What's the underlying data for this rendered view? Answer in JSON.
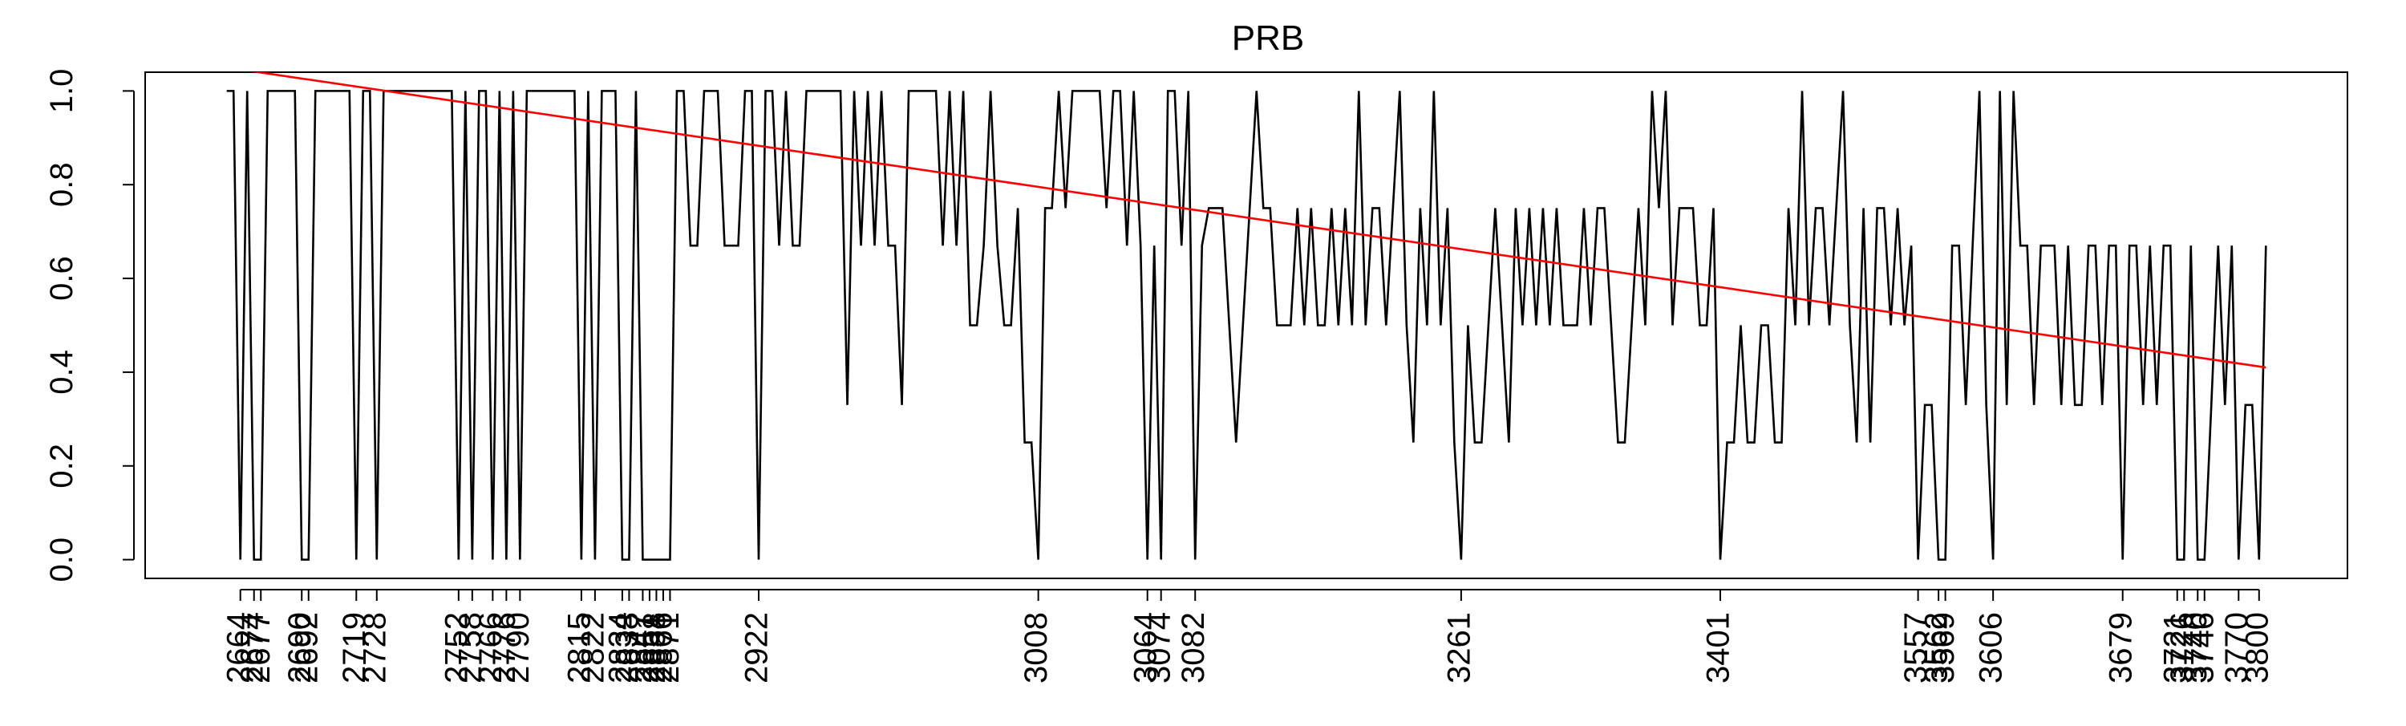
{
  "chart_data": {
    "type": "line",
    "title": "PRB",
    "xlim": [
      -10.96,
      311.96
    ],
    "ylim": [
      -0.04,
      1.04
    ],
    "yticks": [
      {
        "value": 0,
        "label": "0.0"
      },
      0.2,
      0.4,
      0.6,
      0.8,
      {
        "value": 1,
        "label": "1.0"
      }
    ],
    "xticks": [
      {
        "value": 3,
        "label": "2664"
      },
      {
        "value": 5,
        "label": "2674"
      },
      {
        "value": 6,
        "label": "2677"
      },
      {
        "value": 12,
        "label": "2690"
      },
      {
        "value": 13,
        "label": "2692"
      },
      {
        "value": 20,
        "label": "2719"
      },
      {
        "value": 23,
        "label": "2728"
      },
      {
        "value": 35,
        "label": "2752"
      },
      {
        "value": 37,
        "label": "2758"
      },
      {
        "value": 40,
        "label": "2766"
      },
      {
        "value": 42,
        "label": "2776"
      },
      {
        "value": 44,
        "label": "2790"
      },
      {
        "value": 53,
        "label": "2815"
      },
      {
        "value": 55,
        "label": "2822"
      },
      {
        "value": 59,
        "label": "2834"
      },
      {
        "value": 60,
        "label": "2838"
      },
      {
        "value": 62,
        "label": "2847"
      },
      {
        "value": 63,
        "label": "2851"
      },
      {
        "value": 64,
        "label": "2858"
      },
      {
        "value": 65,
        "label": "2866"
      },
      {
        "value": 66,
        "label": "2871"
      },
      {
        "value": 79,
        "label": "2922"
      },
      {
        "value": 120,
        "label": "3008"
      },
      {
        "value": 136,
        "label": "3064"
      },
      {
        "value": 138,
        "label": "3074"
      },
      {
        "value": 143,
        "label": "3082"
      },
      {
        "value": 182,
        "label": "3261"
      },
      {
        "value": 220,
        "label": "3401"
      },
      {
        "value": 249,
        "label": "3557"
      },
      {
        "value": 252,
        "label": "3562"
      },
      {
        "value": 253,
        "label": "3569"
      },
      {
        "value": 260,
        "label": "3606"
      },
      {
        "value": 279,
        "label": "3679"
      },
      {
        "value": 287,
        "label": "3721"
      },
      {
        "value": 288,
        "label": "3726"
      },
      {
        "value": 290,
        "label": "3740"
      },
      {
        "value": 291,
        "label": "3746"
      },
      {
        "value": 296,
        "label": "3770"
      },
      {
        "value": 299,
        "label": "3800"
      }
    ],
    "series": [
      {
        "color": "#000000",
        "x": [
          1,
          2,
          3,
          4,
          5,
          6,
          7,
          8,
          9,
          10,
          11,
          12,
          13,
          14,
          15,
          16,
          17,
          18,
          19,
          20,
          21,
          22,
          23,
          24,
          25,
          26,
          27,
          28,
          29,
          30,
          31,
          32,
          33,
          34,
          35,
          36,
          37,
          38,
          39,
          40,
          41,
          42,
          43,
          44,
          45,
          46,
          47,
          48,
          49,
          50,
          51,
          52,
          53,
          54,
          55,
          56,
          57,
          58,
          59,
          60,
          61,
          62,
          63,
          64,
          65,
          66,
          67,
          68,
          69,
          70,
          71,
          72,
          73,
          74,
          75,
          76,
          77,
          78,
          79,
          80,
          81,
          82,
          83,
          84,
          85,
          86,
          87,
          88,
          89,
          90,
          91,
          92,
          93,
          94,
          95,
          96,
          97,
          98,
          99,
          100,
          101,
          102,
          103,
          104,
          105,
          106,
          107,
          108,
          109,
          110,
          111,
          112,
          113,
          114,
          115,
          116,
          117,
          118,
          119,
          120,
          121,
          122,
          123,
          124,
          125,
          126,
          127,
          128,
          129,
          130,
          131,
          132,
          133,
          134,
          135,
          136,
          137,
          138,
          139,
          140,
          141,
          142,
          143,
          144,
          145,
          146,
          147,
          148,
          149,
          150,
          151,
          152,
          153,
          154,
          155,
          156,
          157,
          158,
          159,
          160,
          161,
          162,
          163,
          164,
          165,
          166,
          167,
          168,
          169,
          170,
          171,
          172,
          173,
          174,
          175,
          176,
          177,
          178,
          179,
          180,
          181,
          182,
          183,
          184,
          185,
          186,
          187,
          188,
          189,
          190,
          191,
          192,
          193,
          194,
          195,
          196,
          197,
          198,
          199,
          200,
          201,
          202,
          203,
          204,
          205,
          206,
          207,
          208,
          209,
          210,
          211,
          212,
          213,
          214,
          215,
          216,
          217,
          218,
          219,
          220,
          221,
          222,
          223,
          224,
          225,
          226,
          227,
          228,
          229,
          230,
          231,
          232,
          233,
          234,
          235,
          236,
          237,
          238,
          239,
          240,
          241,
          242,
          243,
          244,
          245,
          246,
          247,
          248,
          249,
          250,
          251,
          252,
          253,
          254,
          255,
          256,
          257,
          258,
          259,
          260,
          261,
          262,
          263,
          264,
          265,
          266,
          267,
          268,
          269,
          270,
          271,
          272,
          273,
          274,
          275,
          276,
          277,
          278,
          279,
          280,
          281,
          282,
          283,
          284,
          285,
          286,
          287,
          288,
          289,
          290,
          291,
          292,
          293,
          294,
          295,
          296,
          297,
          298,
          299,
          300
        ],
        "values": [
          1,
          1,
          0,
          1,
          0,
          0,
          1,
          1,
          1,
          1,
          1,
          0,
          0,
          1,
          1,
          1,
          1,
          1,
          1,
          0,
          1,
          1,
          0,
          1,
          1,
          1,
          1,
          1,
          1,
          1,
          1,
          1,
          1,
          1,
          0,
          1,
          0,
          1,
          1,
          0,
          1,
          0,
          1,
          0,
          1,
          1,
          1,
          1,
          1,
          1,
          1,
          1,
          0,
          1,
          0,
          1,
          1,
          1,
          0,
          0,
          1,
          0,
          0,
          0,
          0,
          0,
          1,
          1,
          0.67,
          0.67,
          1,
          1,
          1,
          0.67,
          0.67,
          0.67,
          1,
          1,
          0,
          1,
          1,
          0.67,
          1,
          0.67,
          0.67,
          1,
          1,
          1,
          1,
          1,
          1,
          0.33,
          1,
          0.67,
          1,
          0.67,
          1,
          0.67,
          0.67,
          0.33,
          1,
          1,
          1,
          1,
          1,
          0.67,
          1,
          0.67,
          1,
          0.5,
          0.5,
          0.67,
          1,
          0.67,
          0.5,
          0.5,
          0.75,
          0.25,
          0.25,
          0,
          0.75,
          0.75,
          1,
          0.75,
          1,
          1,
          1,
          1,
          1,
          0.75,
          1,
          1,
          0.67,
          1,
          0.67,
          0,
          0.67,
          0,
          1,
          1,
          0.67,
          1,
          0,
          0.67,
          0.75,
          0.75,
          0.75,
          0.5,
          0.25,
          0.5,
          0.75,
          1,
          0.75,
          0.75,
          0.5,
          0.5,
          0.5,
          0.75,
          0.5,
          0.75,
          0.5,
          0.5,
          0.75,
          0.5,
          0.75,
          0.5,
          1,
          0.5,
          0.75,
          0.75,
          0.5,
          0.75,
          1,
          0.5,
          0.25,
          0.75,
          0.5,
          1,
          0.5,
          0.75,
          0.25,
          0,
          0.5,
          0.25,
          0.25,
          0.5,
          0.75,
          0.5,
          0.25,
          0.75,
          0.5,
          0.75,
          0.5,
          0.75,
          0.5,
          0.75,
          0.5,
          0.5,
          0.5,
          0.75,
          0.5,
          0.75,
          0.75,
          0.5,
          0.25,
          0.25,
          0.5,
          0.75,
          0.5,
          1,
          0.75,
          1,
          0.5,
          0.75,
          0.75,
          0.75,
          0.5,
          0.5,
          0.75,
          0,
          0.25,
          0.25,
          0.5,
          0.25,
          0.25,
          0.5,
          0.5,
          0.25,
          0.25,
          0.75,
          0.5,
          1,
          0.5,
          0.75,
          0.75,
          0.5,
          0.75,
          1,
          0.5,
          0.25,
          0.75,
          0.25,
          0.75,
          0.75,
          0.5,
          0.75,
          0.5,
          0.67,
          0,
          0.33,
          0.33,
          0,
          0,
          0.67,
          0.67,
          0.33,
          0.67,
          1,
          0.33,
          0,
          1,
          0.33,
          1,
          0.67,
          0.67,
          0.33,
          0.67,
          0.67,
          0.67,
          0.33,
          0.67,
          0.33,
          0.33,
          0.67,
          0.67,
          0.33,
          0.67,
          0.67,
          0,
          0.67,
          0.67,
          0.33,
          0.67,
          0.33,
          0.67,
          0.67,
          0,
          0,
          0.67,
          0,
          0,
          0.33,
          0.67,
          0.33,
          0.67,
          0,
          0.33,
          0.33,
          0,
          0.67
        ]
      },
      {
        "color": "#ff0000",
        "x": [
          1,
          300
        ],
        "values": [
          1.05,
          0.41
        ]
      }
    ]
  }
}
